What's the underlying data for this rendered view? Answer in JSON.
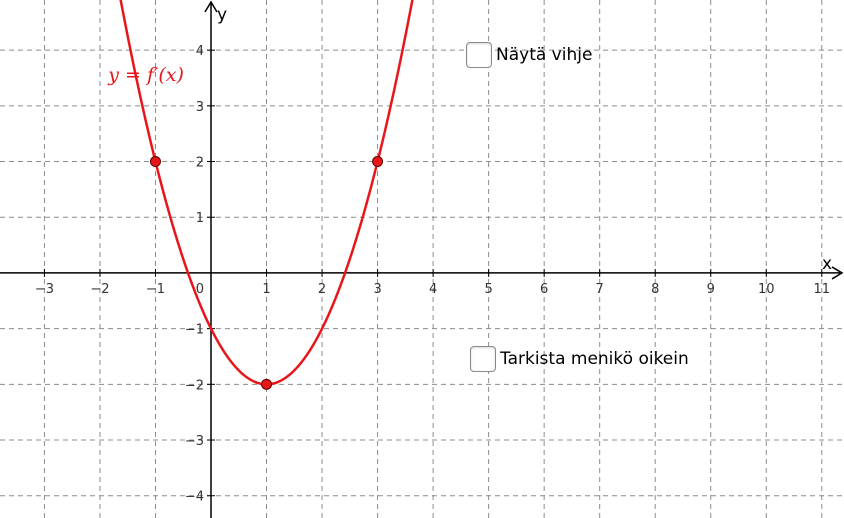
{
  "chart_data": {
    "type": "line",
    "xlabel": "x",
    "ylabel": "y",
    "xlim": [
      -3.8,
      11.4
    ],
    "ylim": [
      -4.4,
      4.9
    ],
    "x_ticks": [
      -3,
      -2,
      -1,
      1,
      2,
      3,
      4,
      5,
      6,
      7,
      8,
      9,
      10,
      11
    ],
    "y_ticks": [
      -4,
      -3,
      -2,
      -1,
      1,
      2,
      3,
      4
    ],
    "origin_label": "0",
    "grid": true,
    "curve": {
      "label": "y = f′(x)",
      "formula": "x^2 - 2x - 1",
      "color": "#e8161b"
    },
    "points": [
      {
        "x": -1,
        "y": 2
      },
      {
        "x": 1,
        "y": -2
      },
      {
        "x": 3,
        "y": 2
      }
    ]
  },
  "controls": {
    "hint_label": "Näytä vihje",
    "check_label": "Tarkista menikö oikein"
  }
}
